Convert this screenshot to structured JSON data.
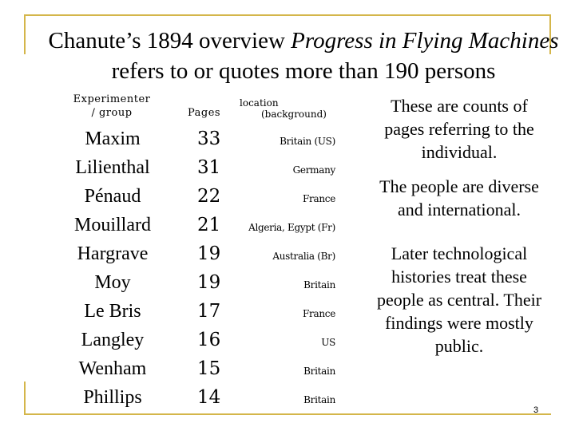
{
  "slide": {
    "title_line1_plain": "Chanute’s 1894 overview ",
    "title_line1_italic": "Progress in Flying Machines",
    "title_line2": "refers to or quotes more than 190 persons",
    "page_number": "3"
  },
  "table": {
    "headers": {
      "experimenter_line1": "Experimenter",
      "experimenter_line2": "/ group",
      "pages": "Pages",
      "location_line1": "location",
      "location_line2": "(background)"
    },
    "rows": [
      {
        "name": "Maxim",
        "pages": "33",
        "location": "Britain (US)"
      },
      {
        "name": "Lilienthal",
        "pages": "31",
        "location": "Germany"
      },
      {
        "name": "Pénaud",
        "pages": "22",
        "location": "France"
      },
      {
        "name": "Mouillard",
        "pages": "21",
        "location": "Algeria, Egypt (Fr)"
      },
      {
        "name": "Hargrave",
        "pages": "19",
        "location": "Australia (Br)"
      },
      {
        "name": "Moy",
        "pages": "19",
        "location": "Britain"
      },
      {
        "name": "Le Bris",
        "pages": "17",
        "location": "France"
      },
      {
        "name": "Langley",
        "pages": "16",
        "location": "US"
      },
      {
        "name": "Wenham",
        "pages": "15",
        "location": "Britain"
      },
      {
        "name": "Phillips",
        "pages": "14",
        "location": "Britain"
      }
    ]
  },
  "notes": [
    "These are counts of pages referring to the individual.",
    "The people are diverse and international.",
    "Later technological histories treat these people as central. Their findings were mostly public."
  ],
  "colors": {
    "frame_accent": "#d4b64a",
    "text": "#000000",
    "background": "#ffffff"
  }
}
